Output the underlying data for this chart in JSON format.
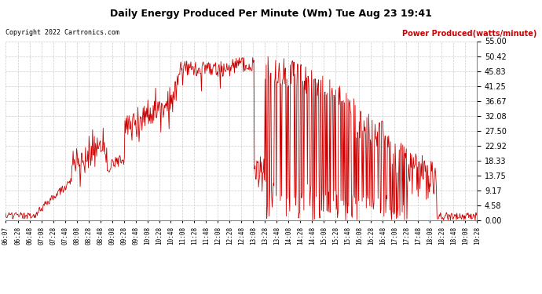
{
  "title": "Daily Energy Produced Per Minute (Wm) Tue Aug 23 19:41",
  "copyright": "Copyright 2022 Cartronics.com",
  "legend_label": "Power Produced(watts/minute)",
  "line_color": "#cc0000",
  "bg_color": "#ffffff",
  "grid_color": "#cccccc",
  "yticks": [
    0.0,
    4.58,
    9.17,
    13.75,
    18.33,
    22.92,
    27.5,
    32.08,
    36.67,
    41.25,
    45.83,
    50.42,
    55.0
  ],
  "ymax": 55.0,
  "ymin": 0.0,
  "xtick_labels": [
    "06:07",
    "06:28",
    "06:48",
    "07:08",
    "07:28",
    "07:48",
    "08:08",
    "08:28",
    "08:48",
    "09:08",
    "09:28",
    "09:48",
    "10:08",
    "10:28",
    "10:48",
    "11:08",
    "11:28",
    "11:48",
    "12:08",
    "12:28",
    "12:48",
    "13:08",
    "13:28",
    "13:48",
    "14:08",
    "14:28",
    "14:48",
    "15:08",
    "15:28",
    "15:48",
    "16:08",
    "16:28",
    "16:48",
    "17:08",
    "17:28",
    "17:48",
    "18:08",
    "18:28",
    "18:48",
    "19:08",
    "19:28"
  ]
}
